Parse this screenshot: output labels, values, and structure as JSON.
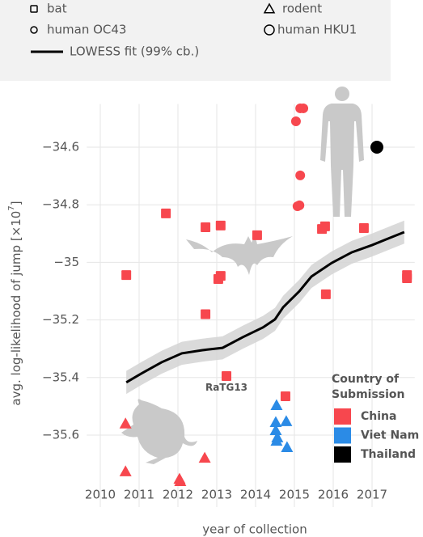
{
  "chart_data": {
    "type": "scatter",
    "xlabel": "year of collection",
    "ylabel": {
      "text": "avg. log-likelihood of jump [×10",
      "sup": "7",
      "end": "]"
    },
    "xlim": [
      2009.65,
      2018.1
    ],
    "ylim": [
      -35.85,
      -34.45
    ],
    "xticks": [
      2010,
      2011,
      2012,
      2013,
      2014,
      2015,
      2016,
      2017
    ],
    "yticks": [
      {
        "value": -35.6,
        "label": "−35.6"
      },
      {
        "value": -35.4,
        "label": "−35.4"
      },
      {
        "value": -35.2,
        "label": "−35.2"
      },
      {
        "value": -35,
        "label": "−35"
      },
      {
        "value": -34.8,
        "label": "−34.8"
      },
      {
        "value": -34.6,
        "label": "−34.6"
      }
    ],
    "grid": true,
    "markers": [
      {
        "name": "bat",
        "marker": "square"
      },
      {
        "name": "rodent",
        "marker": "triangle"
      },
      {
        "name": "human OC43",
        "marker": "circle"
      },
      {
        "name": "human HKU1",
        "marker": "bigcircle"
      }
    ],
    "countries_title": [
      "Country of",
      "Submission"
    ],
    "countries": [
      {
        "name": "China",
        "color": "#f7474e"
      },
      {
        "name": "Viet Nam",
        "color": "#2b8be6"
      },
      {
        "name": "Thailand",
        "color": "#000000"
      }
    ],
    "series": [
      {
        "marker": "square",
        "color": "#f7474e",
        "x": [
          2010.67,
          2011.69,
          2012.71,
          2013.1,
          2014.04,
          2012.71,
          2013.04,
          2013.1,
          2013.25,
          2014.77,
          2015.71,
          2015.79,
          2015.81,
          2016.79,
          2017.9,
          2017.9
        ],
        "values": [
          -35.044,
          -34.83,
          -34.878,
          -34.872,
          -34.906,
          -35.18,
          -35.058,
          -35.047,
          -35.395,
          -35.465,
          -34.884,
          -34.875,
          -35.111,
          -34.881,
          -35.044,
          -35.055
        ]
      },
      {
        "marker": "circle",
        "color": "#f7474e",
        "x": [
          2015.15,
          2015.23,
          2015.04,
          2015.15,
          2015.08,
          2015.13
        ],
        "values": [
          -34.465,
          -34.465,
          -34.51,
          -34.698,
          -34.805,
          -34.802
        ]
      },
      {
        "marker": "bigcircle",
        "color": "#000000",
        "x": [
          2017.125
        ],
        "values": [
          -34.6
        ]
      },
      {
        "marker": "triangle",
        "color": "#f7474e",
        "x": [
          2010.65,
          2010.65,
          2012.04,
          2012.06,
          2012.69
        ],
        "values": [
          -35.56,
          -35.726,
          -35.752,
          -35.76,
          -35.679
        ]
      },
      {
        "marker": "triangle",
        "color": "#2b8be6",
        "x": [
          2014.54,
          2014.52,
          2014.79,
          2014.52,
          2014.56,
          2014.54,
          2014.81
        ],
        "values": [
          -35.496,
          -35.555,
          -35.552,
          -35.583,
          -35.608,
          -35.62,
          -35.642
        ]
      }
    ],
    "fit": {
      "name": "LOWESS fit (99% cb.)",
      "color": "#000000",
      "band_color": "#d4d4d4",
      "x": [
        2010.67,
        2011.06,
        2011.58,
        2012.1,
        2012.63,
        2013.15,
        2013.67,
        2014.19,
        2014.5,
        2014.71,
        2015.13,
        2015.44,
        2015.96,
        2016.48,
        2017.0,
        2017.42,
        2017.83
      ],
      "values": [
        -35.417,
        -35.386,
        -35.347,
        -35.316,
        -35.305,
        -35.297,
        -35.26,
        -35.226,
        -35.198,
        -35.156,
        -35.1,
        -35.049,
        -35.002,
        -34.965,
        -34.94,
        -34.917,
        -34.895
      ],
      "lower": [
        -35.457,
        -35.426,
        -35.387,
        -35.356,
        -35.345,
        -35.337,
        -35.3,
        -35.266,
        -35.238,
        -35.196,
        -35.14,
        -35.089,
        -35.042,
        -35.005,
        -34.98,
        -34.957,
        -34.935
      ],
      "upper": [
        -35.377,
        -35.346,
        -35.307,
        -35.276,
        -35.265,
        -35.257,
        -35.22,
        -35.186,
        -35.158,
        -35.116,
        -35.06,
        -35.009,
        -34.962,
        -34.925,
        -34.9,
        -34.877,
        -34.855
      ]
    },
    "annotations": [
      {
        "text": "RaTG13",
        "x": 2013.25,
        "y": -35.435
      }
    ]
  }
}
